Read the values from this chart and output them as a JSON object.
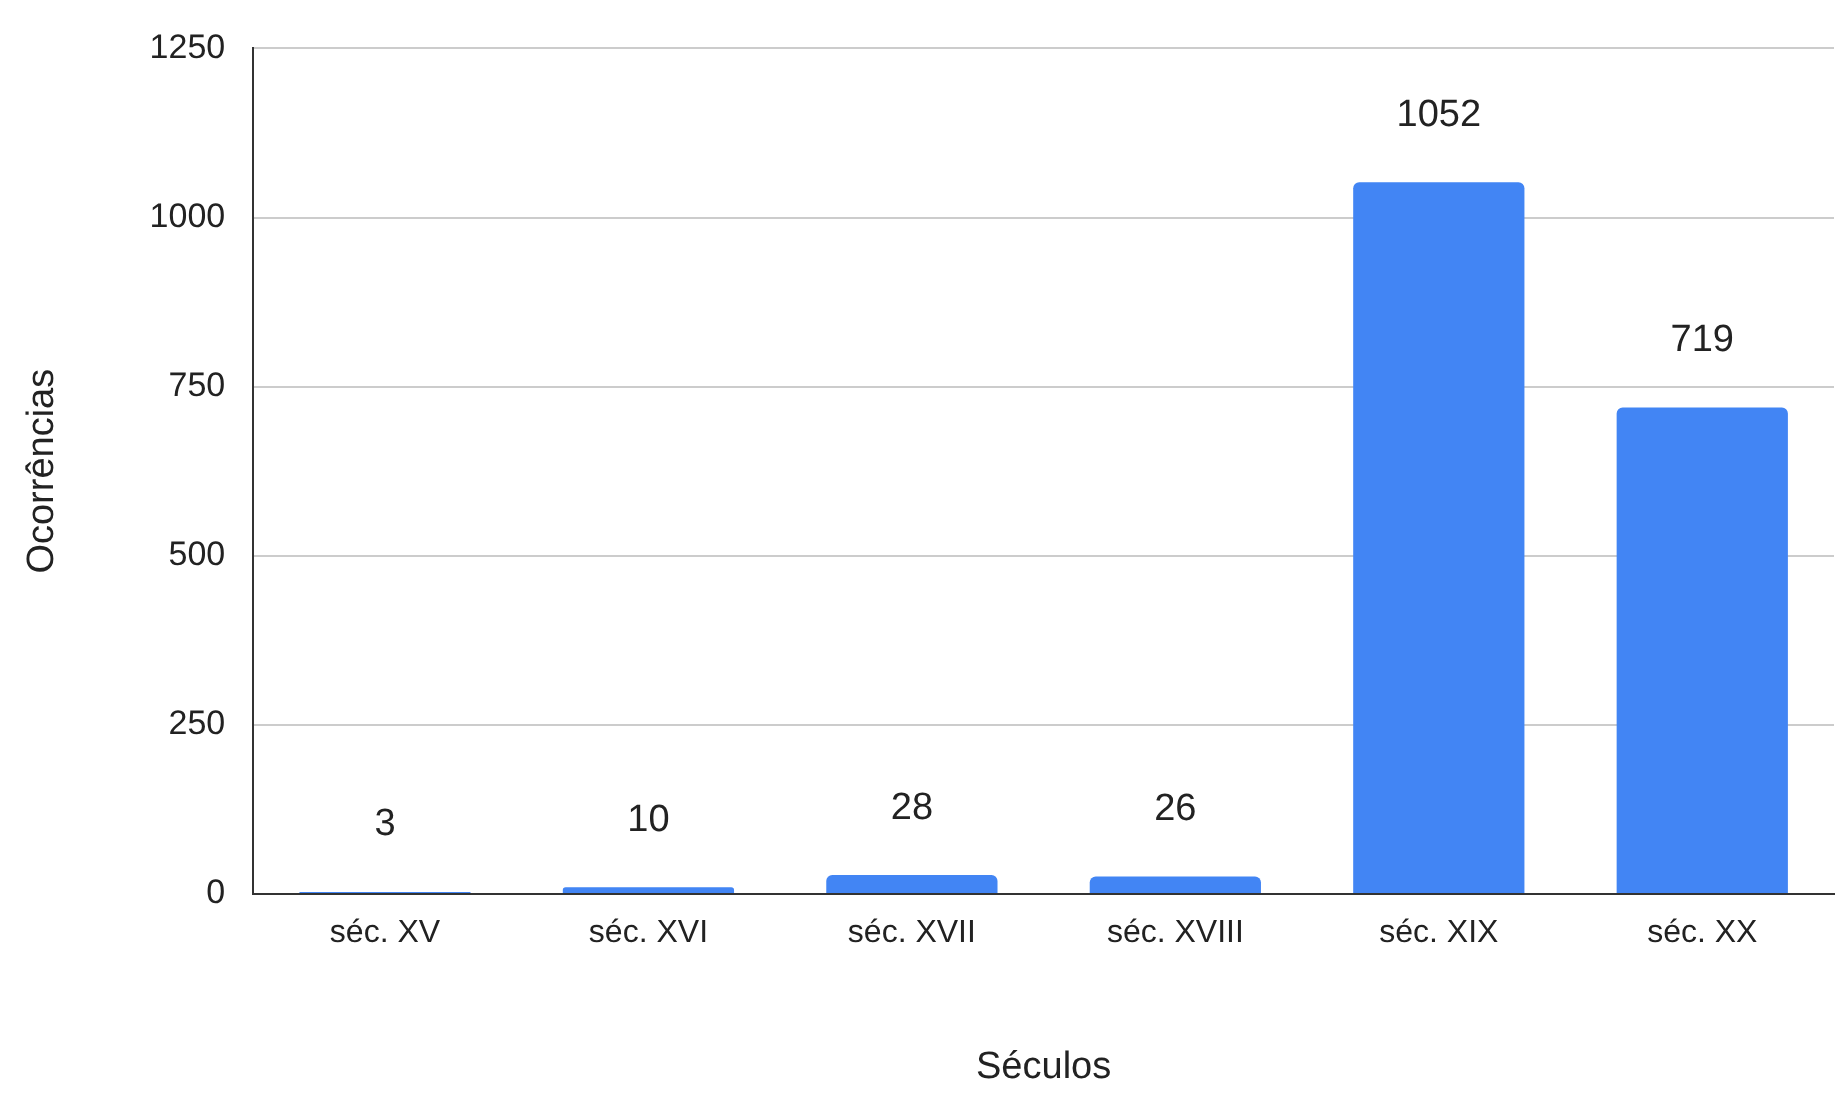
{
  "chart_data": {
    "type": "bar",
    "xlabel": "Séculos",
    "ylabel": "Ocorrências",
    "categories": [
      "séc. XV",
      "séc. XVI",
      "séc. XVII",
      "séc. XVIII",
      "séc. XIX",
      "séc. XX"
    ],
    "values": [
      3,
      10,
      28,
      26,
      1052,
      719
    ],
    "color": "#4285f4",
    "ylim": [
      0,
      1250
    ],
    "yticks": [
      0,
      250,
      500,
      750,
      1000,
      1250
    ],
    "grid": "y",
    "data_labels": true,
    "legend": false
  }
}
